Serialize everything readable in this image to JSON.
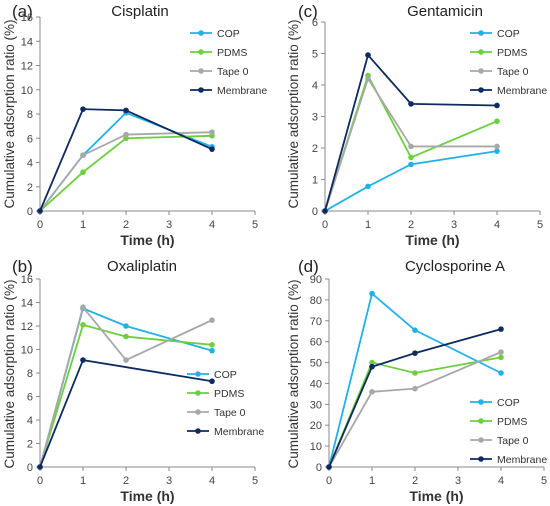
{
  "chart_data": [
    {
      "panel_label": "(a)",
      "title": "Cisplatin",
      "type": "line",
      "xlabel": "Time (h)",
      "ylabel": "Cumulative adsorption ratio (%)",
      "xlim": [
        0,
        5
      ],
      "ylim": [
        0,
        16
      ],
      "xticks": [
        0,
        1,
        2,
        3,
        4,
        5
      ],
      "yticks": [
        0,
        2,
        4,
        6,
        8,
        10,
        12,
        14,
        16
      ],
      "legend_position": "top-right",
      "grid": false,
      "x": [
        0,
        1,
        2,
        4
      ],
      "series": [
        {
          "name": "COP",
          "color": "#1fb2e6",
          "values": [
            0,
            4.6,
            8.1,
            5.3
          ]
        },
        {
          "name": "PDMS",
          "color": "#6ccf3e",
          "values": [
            0,
            3.2,
            6.0,
            6.2
          ]
        },
        {
          "name": "Tape 0",
          "color": "#a8a8a8",
          "values": [
            0,
            4.6,
            6.3,
            6.5
          ]
        },
        {
          "name": "Membrane",
          "color": "#0e2a5f",
          "values": [
            0,
            8.4,
            8.3,
            5.1
          ]
        }
      ]
    },
    {
      "panel_label": "(c)",
      "title": "Gentamicin",
      "type": "line",
      "xlabel": "Time (h)",
      "ylabel": "Cumulative adsorption ratio (%)",
      "xlim": [
        0,
        5
      ],
      "ylim": [
        0,
        6
      ],
      "xticks": [
        0,
        1,
        2,
        3,
        4,
        5
      ],
      "yticks": [
        0,
        1,
        2,
        3,
        4,
        5,
        6
      ],
      "legend_position": "top-right",
      "grid": false,
      "x": [
        0,
        1,
        2,
        4
      ],
      "series": [
        {
          "name": "COP",
          "color": "#1fb2e6",
          "values": [
            0,
            0.78,
            1.48,
            1.9
          ]
        },
        {
          "name": "PDMS",
          "color": "#6ccf3e",
          "values": [
            0,
            4.3,
            1.7,
            2.85
          ]
        },
        {
          "name": "Tape 0",
          "color": "#a8a8a8",
          "values": [
            0,
            4.2,
            2.05,
            2.05
          ]
        },
        {
          "name": "Membrane",
          "color": "#0e2a5f",
          "values": [
            0,
            4.95,
            3.4,
            3.35
          ]
        }
      ]
    },
    {
      "panel_label": "(b)",
      "title": "Oxaliplatin",
      "type": "line",
      "xlabel": "Time (h)",
      "ylabel": "Cumulative adsorption ratio (%)",
      "xlim": [
        0,
        5
      ],
      "ylim": [
        0,
        16
      ],
      "xticks": [
        0,
        1,
        2,
        3,
        4,
        5
      ],
      "yticks": [
        0,
        2,
        4,
        6,
        8,
        10,
        12,
        14,
        16
      ],
      "legend_position": "bottom-right",
      "grid": false,
      "x": [
        0,
        1,
        2,
        4
      ],
      "series": [
        {
          "name": "COP",
          "color": "#1fb2e6",
          "values": [
            0,
            13.5,
            12.0,
            9.9
          ]
        },
        {
          "name": "PDMS",
          "color": "#6ccf3e",
          "values": [
            0,
            12.1,
            11.1,
            10.4
          ]
        },
        {
          "name": "Tape 0",
          "color": "#a8a8a8",
          "values": [
            0,
            13.6,
            9.1,
            12.5
          ]
        },
        {
          "name": "Membrane",
          "color": "#0e2a5f",
          "values": [
            0,
            9.1,
            null,
            7.3
          ]
        }
      ]
    },
    {
      "panel_label": "(d)",
      "title": "Cyclosporine A",
      "type": "line",
      "xlabel": "Time (h)",
      "ylabel": "Cumulative adsorption ratio (%)",
      "xlim": [
        0,
        5
      ],
      "ylim": [
        0,
        90
      ],
      "xticks": [
        0,
        1,
        2,
        3,
        4,
        5
      ],
      "yticks": [
        0,
        10,
        20,
        30,
        40,
        50,
        60,
        70,
        80,
        90
      ],
      "legend_position": "bottom-right",
      "grid": false,
      "x": [
        0,
        1,
        2,
        4
      ],
      "series": [
        {
          "name": "COP",
          "color": "#1fb2e6",
          "values": [
            0,
            83,
            65.5,
            45
          ]
        },
        {
          "name": "PDMS",
          "color": "#6ccf3e",
          "values": [
            0,
            50,
            45,
            52.5
          ]
        },
        {
          "name": "Tape 0",
          "color": "#a8a8a8",
          "values": [
            0,
            36,
            37.5,
            55
          ]
        },
        {
          "name": "Membrane",
          "color": "#0e2a5f",
          "values": [
            0,
            48,
            54.5,
            66
          ]
        }
      ]
    }
  ]
}
